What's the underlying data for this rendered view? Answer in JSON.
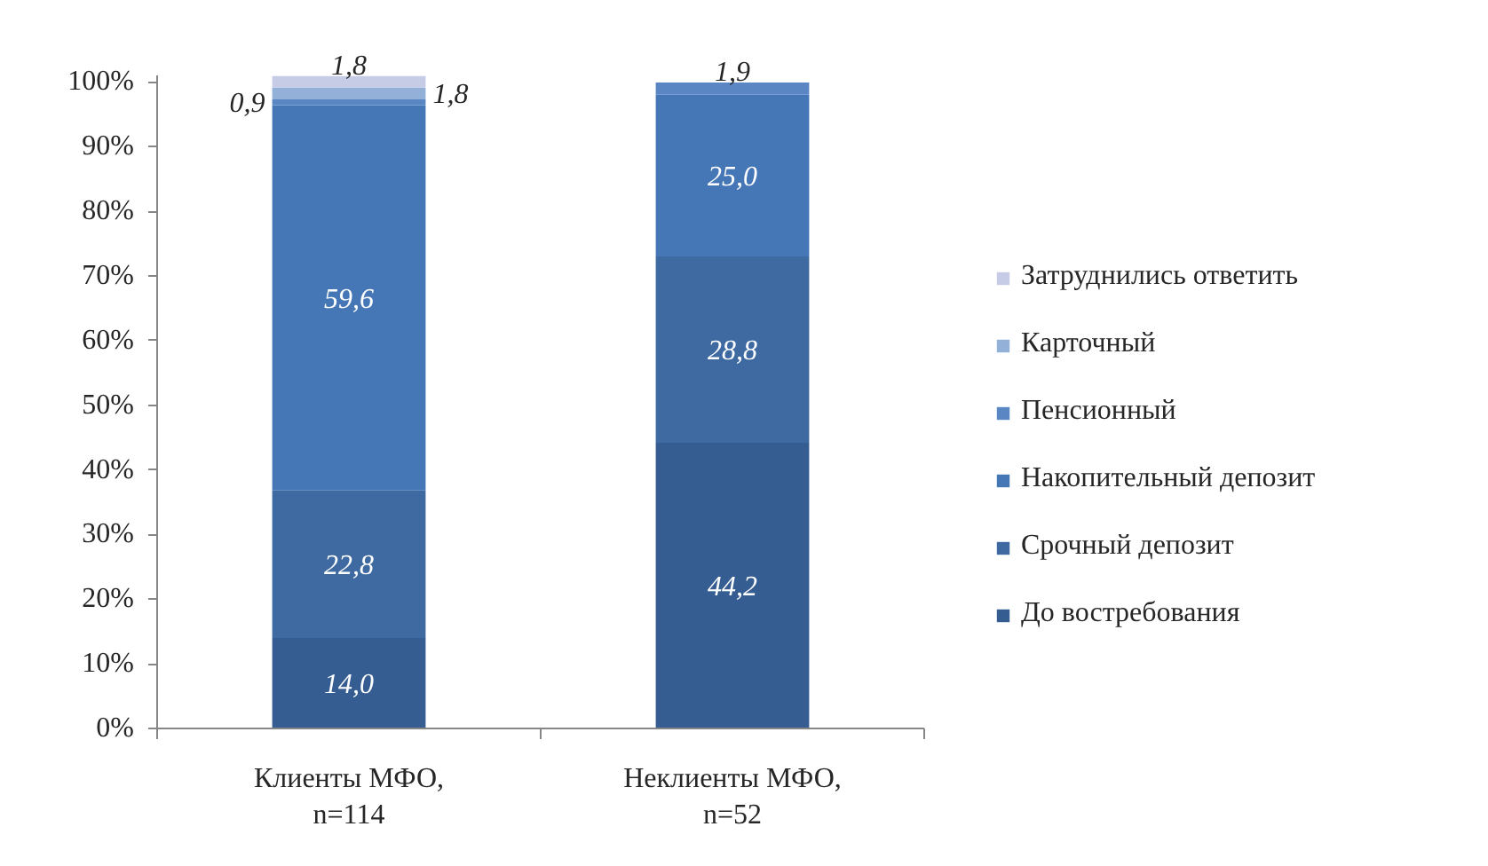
{
  "chart_data": {
    "type": "bar",
    "stacked": true,
    "categories": [
      "Клиенты МФО,\nn=114",
      "Неклиенты МФО,\nn=52"
    ],
    "ylim": [
      0,
      101
    ],
    "yticks": [
      {
        "value": 0,
        "label": "0%"
      },
      {
        "value": 10,
        "label": "10%"
      },
      {
        "value": 20,
        "label": "20%"
      },
      {
        "value": 30,
        "label": "30%"
      },
      {
        "value": 40,
        "label": "40%"
      },
      {
        "value": 50,
        "label": "50%"
      },
      {
        "value": 60,
        "label": "60%"
      },
      {
        "value": 70,
        "label": "70%"
      },
      {
        "value": 80,
        "label": "80%"
      },
      {
        "value": 90,
        "label": "90%"
      },
      {
        "value": 100,
        "label": "100%"
      }
    ],
    "legend": "right",
    "series": [
      {
        "name": "До востребования",
        "color": "#355d91",
        "values": [
          14.0,
          44.2
        ],
        "value_labels": [
          "14,0",
          "44,2"
        ]
      },
      {
        "name": "Срочный депозит",
        "color": "#3e69a1",
        "values": [
          22.8,
          28.8
        ],
        "value_labels": [
          "22,8",
          "28,8"
        ]
      },
      {
        "name": "Накопительный депозит",
        "color": "#4577b6",
        "values": [
          59.6,
          25.0
        ],
        "value_labels": [
          "59,6",
          "25,0"
        ]
      },
      {
        "name": "Пенсионный",
        "color": "#5a86c4",
        "values": [
          0.9,
          1.9
        ],
        "value_labels": [
          "0,9",
          "1,9"
        ]
      },
      {
        "name": "Карточный",
        "color": "#93b0d8",
        "values": [
          1.8,
          null
        ],
        "value_labels": [
          "1,8",
          null
        ]
      },
      {
        "name": "Затруднились ответить",
        "color": "#c6cbe6",
        "values": [
          1.8,
          null
        ],
        "value_labels": [
          "1,8",
          null
        ]
      }
    ]
  }
}
